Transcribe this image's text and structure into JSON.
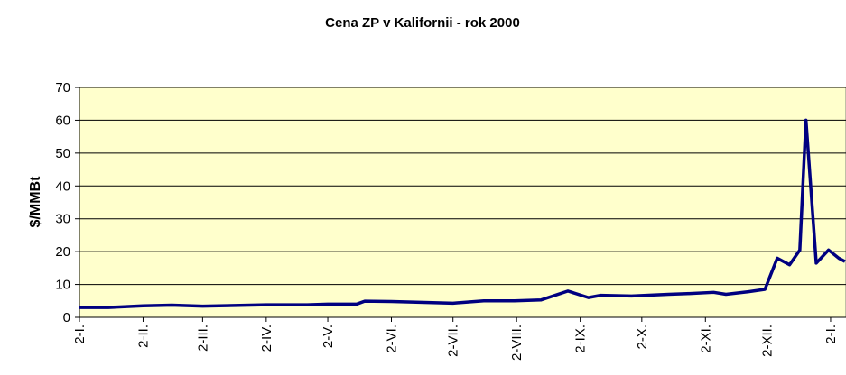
{
  "chart_data": {
    "type": "line",
    "title": "Cena ZP v Kalifornii - rok 2000",
    "y_label": "$/MMBt",
    "series": [
      {
        "name": "Cena ZP",
        "color": "#000080",
        "x": [
          0,
          14,
          31,
          45,
          60,
          91,
          111,
          121,
          135,
          139,
          152,
          182,
          197,
          212,
          225,
          238,
          248,
          254,
          269,
          287,
          296,
          309,
          315,
          326,
          334,
          340,
          346,
          351,
          354,
          359,
          365,
          370,
          373
        ],
        "values": [
          3,
          3,
          3.5,
          3.7,
          3.4,
          3.8,
          3.8,
          4.0,
          4.0,
          4.9,
          4.8,
          4.3,
          5.0,
          5.0,
          5.3,
          8.0,
          6.0,
          6.7,
          6.5,
          7.0,
          7.2,
          7.6,
          7.0,
          7.8,
          8.5,
          18,
          16,
          20.5,
          60,
          16.5,
          20.5,
          18,
          17
        ]
      }
    ],
    "xlim": [
      0,
      373.5
    ],
    "xticks": [
      {
        "value": 0,
        "label": "2-I."
      },
      {
        "value": 31,
        "label": "2-II."
      },
      {
        "value": 60,
        "label": "2-III."
      },
      {
        "value": 91,
        "label": "2-IV."
      },
      {
        "value": 121,
        "label": "2-V."
      },
      {
        "value": 152,
        "label": "2-VI."
      },
      {
        "value": 182,
        "label": "2-VII."
      },
      {
        "value": 213,
        "label": "2-VIII."
      },
      {
        "value": 244,
        "label": "2-IX."
      },
      {
        "value": 274,
        "label": "2-X."
      },
      {
        "value": 305,
        "label": "2-XI."
      },
      {
        "value": 335,
        "label": "2-XII."
      },
      {
        "value": 366,
        "label": "2-I."
      }
    ],
    "ylim": [
      0,
      70
    ],
    "yticks": [
      0,
      10,
      20,
      30,
      40,
      50,
      60,
      70
    ],
    "grid": true,
    "background": "#ffffcc"
  }
}
